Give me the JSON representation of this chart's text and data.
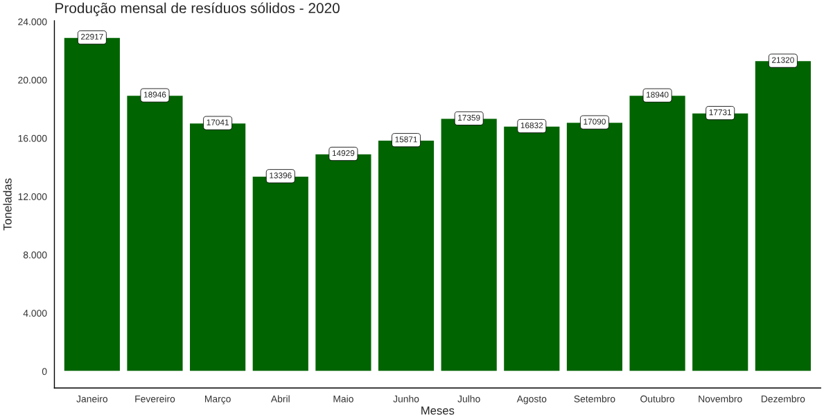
{
  "chart_data": {
    "type": "bar",
    "title": "Produção mensal de resíduos sólidos - 2020",
    "xlabel": "Meses",
    "ylabel": "Toneladas",
    "categories": [
      "Janeiro",
      "Fevereiro",
      "Março",
      "Abril",
      "Maio",
      "Junho",
      "Julho",
      "Agosto",
      "Setembro",
      "Outubro",
      "Novembro",
      "Dezembro"
    ],
    "values": [
      22917,
      18946,
      17041,
      13396,
      14929,
      15871,
      17359,
      16832,
      17090,
      18940,
      17731,
      21320
    ],
    "color": "#006400",
    "ylim": [
      -1146,
      24063
    ],
    "yticks": [
      0,
      {
        "value": 4000,
        "label": "4.000"
      },
      {
        "value": 8000,
        "label": "8.000"
      },
      {
        "value": 12000,
        "label": "12.000"
      },
      {
        "value": 16000,
        "label": "16.000"
      },
      {
        "value": 20000,
        "label": "20.000"
      },
      {
        "value": 24000,
        "label": "24.000"
      }
    ],
    "data_labels": true,
    "grid": false,
    "legend": false
  }
}
